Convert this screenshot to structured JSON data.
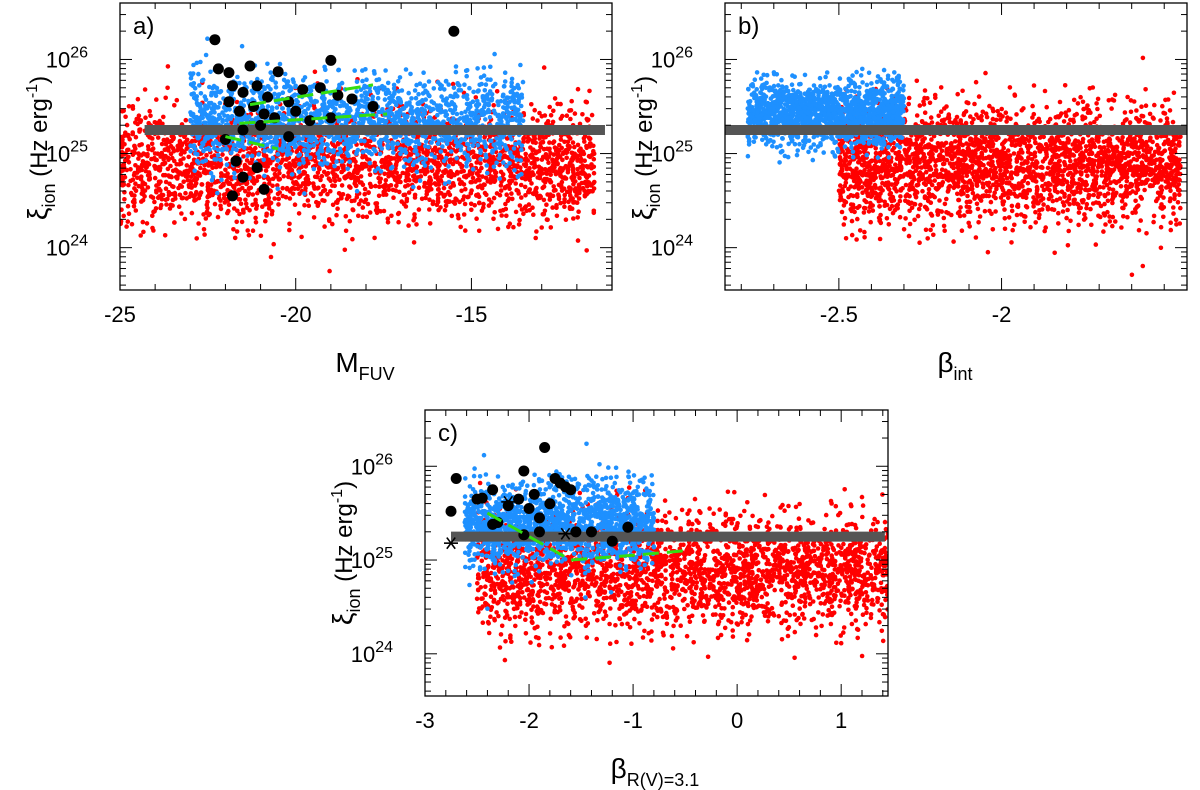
{
  "colors": {
    "red": "#ff0000",
    "blue": "#1e90ff",
    "black": "#000000",
    "green": "#33dd11",
    "band": "#555555"
  },
  "y_axis": {
    "label_main": "ξ",
    "label_sub": "ion",
    "label_unit": " (Hz erg",
    "label_exp": "-1",
    "label_close": ")",
    "tick_base": "10",
    "tick_exps": [
      "24",
      "25",
      "26"
    ]
  },
  "chart_data": [
    {
      "type": "scatter",
      "panel_label": "a)",
      "xlabel_main": "M",
      "xlabel_sub": "FUV",
      "xlim": [
        -25,
        -11
      ],
      "ylim_log10": [
        23.55,
        26.6
      ],
      "y_scale": "log",
      "x_ticks": [
        "-25",
        "-20",
        "-15"
      ],
      "x_tick_values": [
        -25,
        -20,
        -15
      ],
      "reference_band": {
        "log10_y": 25.25,
        "x_range": [
          -24.3,
          -11.2
        ]
      },
      "red_cloud": {
        "x_range": [
          -25,
          -11.5
        ],
        "log10_y_center": 24.88,
        "log10_y_spread": 0.3,
        "n": 2600
      },
      "blue_cloud": {
        "x_range": [
          -23,
          -13.5
        ],
        "log10_y_center": 25.35,
        "log10_y_spread": 0.24,
        "n": 1800
      },
      "black_points": [
        [
          -22.3,
          26.21
        ],
        [
          -22.2,
          25.9
        ],
        [
          -21.9,
          25.86
        ],
        [
          -21.3,
          25.93
        ],
        [
          -20.5,
          25.87
        ],
        [
          -19.0,
          25.99
        ],
        [
          -15.5,
          26.3
        ],
        [
          -21.8,
          25.72
        ],
        [
          -21.5,
          25.65
        ],
        [
          -21.1,
          25.72
        ],
        [
          -20.8,
          25.6
        ],
        [
          -20.2,
          25.55
        ],
        [
          -19.8,
          25.68
        ],
        [
          -19.3,
          25.7
        ],
        [
          -18.8,
          25.62
        ],
        [
          -18.4,
          25.58
        ],
        [
          -17.8,
          25.5
        ],
        [
          -21.9,
          25.55
        ],
        [
          -21.6,
          25.45
        ],
        [
          -21.2,
          25.5
        ],
        [
          -20.9,
          25.42
        ],
        [
          -20.6,
          25.38
        ],
        [
          -20.0,
          25.45
        ],
        [
          -19.6,
          25.35
        ],
        [
          -19.0,
          25.38
        ],
        [
          -22.0,
          25.15
        ],
        [
          -21.5,
          25.25
        ],
        [
          -21.0,
          25.3
        ],
        [
          -20.2,
          25.18
        ],
        [
          -21.7,
          24.92
        ],
        [
          -21.1,
          24.85
        ],
        [
          -21.5,
          24.75
        ],
        [
          -20.9,
          24.62
        ],
        [
          -21.8,
          24.55
        ]
      ],
      "green_dashed": [
        [
          [
            -21.3,
            25.52
          ],
          [
            -17.8,
            25.73
          ]
        ],
        [
          [
            -21.6,
            25.32
          ],
          [
            -17.4,
            25.42
          ]
        ],
        [
          [
            -22.0,
            25.18
          ],
          [
            -20.5,
            25.05
          ]
        ]
      ],
      "grid": false,
      "legend": "none"
    },
    {
      "type": "scatter",
      "panel_label": "b)",
      "xlabel_main": "β",
      "xlabel_sub": "int",
      "xlim": [
        -2.85,
        -1.43
      ],
      "ylim_log10": [
        23.55,
        26.6
      ],
      "y_scale": "log",
      "x_ticks": [
        "-2.5",
        "-2"
      ],
      "x_tick_values": [
        -2.5,
        -2.0
      ],
      "reference_band": {
        "log10_y": 25.25,
        "x_range": [
          -2.85,
          -1.43
        ]
      },
      "red_cloud": {
        "x_range": [
          -2.5,
          -1.45
        ],
        "log10_y_center": 24.9,
        "log10_y_spread": 0.3,
        "n": 2600
      },
      "blue_cloud": {
        "x_range": [
          -2.78,
          -2.3
        ],
        "log10_y_center": 25.42,
        "log10_y_spread": 0.17,
        "n": 1500
      },
      "black_points": [],
      "green_dashed": [],
      "grid": false,
      "legend": "none"
    },
    {
      "type": "scatter",
      "panel_label": "c)",
      "xlabel_main": "β",
      "xlabel_sub": "R(V)=3.1",
      "xlim": [
        -3.0,
        1.45
      ],
      "ylim_log10": [
        23.55,
        26.6
      ],
      "y_scale": "log",
      "x_ticks": [
        "-3",
        "-2",
        "-1",
        "0",
        "1"
      ],
      "x_tick_values": [
        -3,
        -2,
        -1,
        0,
        1
      ],
      "reference_band": {
        "log10_y": 25.25,
        "x_range": [
          -2.75,
          1.42
        ]
      },
      "red_cloud": {
        "x_range": [
          -2.5,
          1.45
        ],
        "log10_y_center": 24.88,
        "log10_y_spread": 0.3,
        "n": 2600
      },
      "blue_cloud": {
        "x_range": [
          -2.62,
          -0.8
        ],
        "log10_y_center": 25.38,
        "log10_y_spread": 0.22,
        "n": 1600
      },
      "black_points": [
        [
          -2.7,
          25.87
        ],
        [
          -2.75,
          25.52
        ],
        [
          -2.5,
          25.65
        ],
        [
          -2.45,
          25.66
        ],
        [
          -2.35,
          25.75
        ],
        [
          -2.35,
          25.38
        ],
        [
          -2.1,
          25.65
        ],
        [
          -2.05,
          25.95
        ],
        [
          -1.95,
          25.7
        ],
        [
          -1.85,
          26.2
        ],
        [
          -1.75,
          25.87
        ],
        [
          -1.7,
          25.82
        ],
        [
          -1.65,
          25.78
        ],
        [
          -1.6,
          25.75
        ],
        [
          -1.8,
          25.6
        ],
        [
          -2.0,
          25.55
        ],
        [
          -2.2,
          25.58
        ],
        [
          -1.9,
          25.45
        ],
        [
          -1.55,
          25.3
        ],
        [
          -1.9,
          25.3
        ],
        [
          -2.05,
          25.27
        ],
        [
          -1.4,
          25.3
        ],
        [
          -1.2,
          25.2
        ],
        [
          -1.05,
          25.35
        ],
        [
          -2.3,
          25.4
        ]
      ],
      "asterisk_points": [
        [
          -2.75,
          25.18
        ],
        [
          -2.2,
          25.62
        ],
        [
          -1.65,
          25.28
        ]
      ],
      "green_dashed": [
        [
          [
            -2.4,
            25.5
          ],
          [
            -1.6,
            25.0
          ],
          [
            -1.0,
            25.05
          ],
          [
            -0.5,
            25.1
          ]
        ]
      ],
      "grid": false,
      "legend": "none"
    }
  ]
}
